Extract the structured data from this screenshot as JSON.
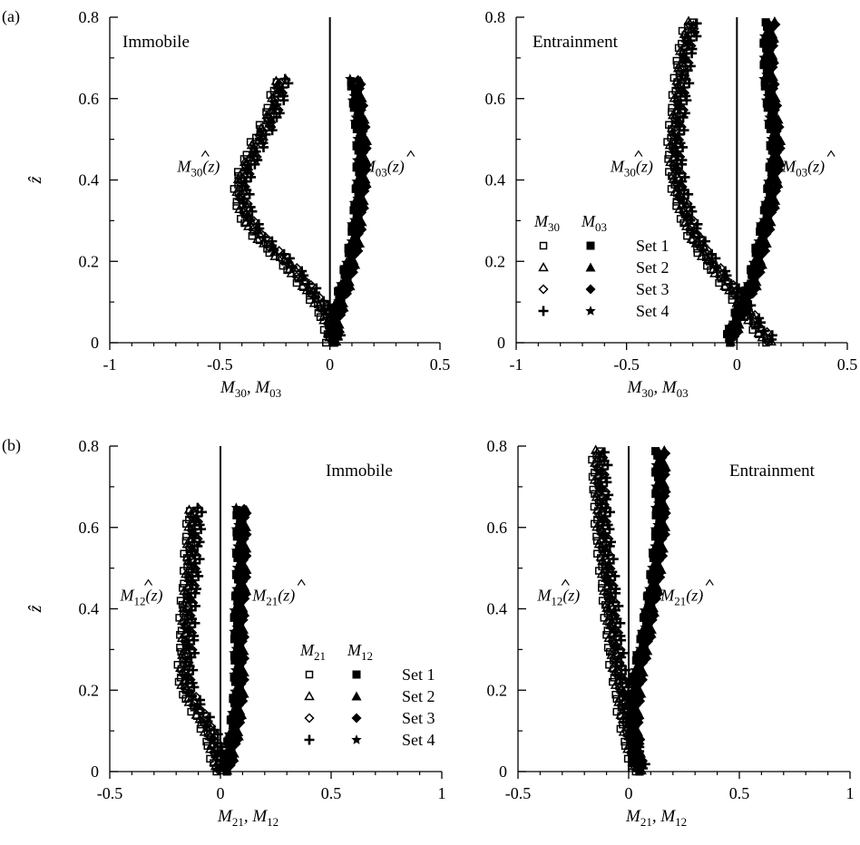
{
  "figure_labels": {
    "a": "(a)",
    "b": "(b)"
  },
  "legend": {
    "col_a_row1": "M",
    "sets": [
      "Set 1",
      "Set 2",
      "Set 3",
      "Set 4"
    ]
  },
  "chart_data": [
    {
      "id": "a-left",
      "type": "scatter",
      "title": "Immobile",
      "xlim": [
        -1,
        0.5
      ],
      "ylim": [
        0,
        0.8
      ],
      "xticks": [
        -1,
        -0.5,
        0,
        0.5
      ],
      "xtick_labels": [
        "-1",
        "-0.5",
        "0",
        "0.5"
      ],
      "yticks": [
        0,
        0.2,
        0.4,
        0.6,
        0.8
      ],
      "ytick_labels": [
        "0",
        "0.2",
        "0.4",
        "0.6",
        "0.8"
      ],
      "xlabel": {
        "parts": [
          "M",
          "30",
          ", M",
          "03"
        ]
      },
      "ylabel": "ẑ",
      "left_label": {
        "M": "M",
        "sub": "30",
        "arg": "(z)",
        "at": [
          -0.5,
          0.42
        ]
      },
      "right_label": {
        "M": "M",
        "sub": "03",
        "arg": "(z)",
        "at": [
          0.12,
          0.42
        ]
      },
      "left_series": "M30",
      "right_series": "M03",
      "profile_left": [
        [
          0.0,
          0.0
        ],
        [
          0.02,
          0.0
        ],
        [
          0.0,
          0.05
        ],
        [
          -0.05,
          0.1
        ],
        [
          -0.12,
          0.15
        ],
        [
          -0.2,
          0.2
        ],
        [
          -0.3,
          0.25
        ],
        [
          -0.37,
          0.3
        ],
        [
          -0.4,
          0.35
        ],
        [
          -0.4,
          0.4
        ],
        [
          -0.36,
          0.45
        ],
        [
          -0.32,
          0.5
        ],
        [
          -0.27,
          0.55
        ],
        [
          -0.24,
          0.6
        ],
        [
          -0.22,
          0.65
        ]
      ],
      "profile_right": [
        [
          0.02,
          0.0
        ],
        [
          0.03,
          0.05
        ],
        [
          0.05,
          0.1
        ],
        [
          0.08,
          0.15
        ],
        [
          0.1,
          0.2
        ],
        [
          0.12,
          0.25
        ],
        [
          0.13,
          0.3
        ],
        [
          0.14,
          0.35
        ],
        [
          0.15,
          0.4
        ],
        [
          0.15,
          0.45
        ],
        [
          0.15,
          0.5
        ],
        [
          0.14,
          0.55
        ],
        [
          0.13,
          0.6
        ],
        [
          0.12,
          0.65
        ]
      ],
      "hide_legend": true
    },
    {
      "id": "a-right",
      "type": "scatter",
      "title": "Entrainment",
      "xlim": [
        -1,
        0.5
      ],
      "ylim": [
        0,
        0.8
      ],
      "xticks": [
        -1,
        -0.5,
        0,
        0.5
      ],
      "xtick_labels": [
        "-1",
        "-0.5",
        "0",
        "0.5"
      ],
      "yticks": [
        0,
        0.2,
        0.4,
        0.6,
        0.8
      ],
      "ytick_labels": [
        "0",
        "0.2",
        "0.4",
        "0.6",
        "0.8"
      ],
      "xlabel": {
        "parts": [
          "M",
          "30",
          ", M",
          "03"
        ]
      },
      "ylabel": "",
      "left_label": {
        "M": "M",
        "sub": "30",
        "arg": "(z)",
        "at": [
          -0.38,
          0.42
        ]
      },
      "right_label": {
        "M": "M",
        "sub": "03",
        "arg": "(z)",
        "at": [
          0.18,
          0.42
        ]
      },
      "left_series": "M30",
      "right_series": "M03",
      "profile_left": [
        [
          0.15,
          0.0
        ],
        [
          0.08,
          0.05
        ],
        [
          0.02,
          0.1
        ],
        [
          -0.05,
          0.15
        ],
        [
          -0.12,
          0.2
        ],
        [
          -0.18,
          0.25
        ],
        [
          -0.22,
          0.3
        ],
        [
          -0.25,
          0.35
        ],
        [
          -0.27,
          0.4
        ],
        [
          -0.28,
          0.45
        ],
        [
          -0.28,
          0.5
        ],
        [
          -0.27,
          0.55
        ],
        [
          -0.26,
          0.6
        ],
        [
          -0.25,
          0.65
        ],
        [
          -0.24,
          0.7
        ],
        [
          -0.22,
          0.75
        ],
        [
          -0.2,
          0.79
        ]
      ],
      "profile_right": [
        [
          -0.03,
          0.0
        ],
        [
          0.0,
          0.05
        ],
        [
          0.04,
          0.1
        ],
        [
          0.08,
          0.15
        ],
        [
          0.1,
          0.2
        ],
        [
          0.12,
          0.25
        ],
        [
          0.14,
          0.3
        ],
        [
          0.16,
          0.35
        ],
        [
          0.17,
          0.4
        ],
        [
          0.18,
          0.45
        ],
        [
          0.18,
          0.5
        ],
        [
          0.17,
          0.55
        ],
        [
          0.16,
          0.6
        ],
        [
          0.15,
          0.65
        ],
        [
          0.15,
          0.7
        ],
        [
          0.15,
          0.75
        ],
        [
          0.16,
          0.79
        ]
      ],
      "legend": {
        "head_left": {
          "M": "M",
          "sub": "30"
        },
        "head_right": {
          "M": "M",
          "sub": "03"
        },
        "entries": [
          "Set 1",
          "Set 2",
          "Set 3",
          "Set 4"
        ]
      }
    },
    {
      "id": "b-left",
      "type": "scatter",
      "title": "Immobile",
      "xlim": [
        -0.5,
        1
      ],
      "ylim": [
        0,
        0.8
      ],
      "xticks": [
        -0.5,
        0,
        0.5,
        1
      ],
      "xtick_labels": [
        "-0.5",
        "0",
        "0.5",
        "1"
      ],
      "yticks": [
        0,
        0.2,
        0.4,
        0.6,
        0.8
      ],
      "ytick_labels": [
        "0",
        "0.2",
        "0.4",
        "0.6",
        "0.8"
      ],
      "xlabel": {
        "parts": [
          "M",
          "21",
          ", M",
          "12"
        ]
      },
      "ylabel": "ẑ",
      "left_label": {
        "M": "M",
        "sub": "12",
        "arg": "(z)",
        "at": [
          -0.26,
          0.42
        ]
      },
      "right_label": {
        "M": "M",
        "sub": "21",
        "arg": "(z)",
        "at": [
          0.12,
          0.42
        ]
      },
      "left_series": "M12",
      "right_series": "M21",
      "profile_left": [
        [
          0.0,
          0.0
        ],
        [
          -0.02,
          0.05
        ],
        [
          -0.05,
          0.1
        ],
        [
          -0.1,
          0.15
        ],
        [
          -0.15,
          0.2
        ],
        [
          -0.16,
          0.25
        ],
        [
          -0.15,
          0.3
        ],
        [
          -0.15,
          0.35
        ],
        [
          -0.15,
          0.4
        ],
        [
          -0.14,
          0.45
        ],
        [
          -0.13,
          0.5
        ],
        [
          -0.13,
          0.55
        ],
        [
          -0.12,
          0.6
        ],
        [
          -0.12,
          0.65
        ]
      ],
      "profile_right": [
        [
          0.03,
          0.0
        ],
        [
          0.05,
          0.05
        ],
        [
          0.07,
          0.1
        ],
        [
          0.08,
          0.15
        ],
        [
          0.09,
          0.2
        ],
        [
          0.09,
          0.25
        ],
        [
          0.09,
          0.3
        ],
        [
          0.09,
          0.35
        ],
        [
          0.09,
          0.4
        ],
        [
          0.1,
          0.45
        ],
        [
          0.1,
          0.5
        ],
        [
          0.1,
          0.55
        ],
        [
          0.1,
          0.6
        ],
        [
          0.1,
          0.65
        ]
      ],
      "legend": {
        "head_left": {
          "M": "M",
          "sub": "21"
        },
        "head_right": {
          "M": "M",
          "sub": "12"
        },
        "entries": [
          "Set 1",
          "Set 2",
          "Set 3",
          "Set 4"
        ]
      }
    },
    {
      "id": "b-right",
      "type": "scatter",
      "title": "Entrainment",
      "xlim": [
        -0.5,
        1
      ],
      "ylim": [
        0,
        0.8
      ],
      "xticks": [
        -0.5,
        0,
        0.5,
        1
      ],
      "xtick_labels": [
        "-0.5",
        "0",
        "0.5",
        "1"
      ],
      "yticks": [
        0,
        0.2,
        0.4,
        0.6,
        0.8
      ],
      "ytick_labels": [
        "0",
        "0.2",
        "0.4",
        "0.6",
        "0.8"
      ],
      "xlabel": {
        "parts": [
          "M",
          "21",
          ", M",
          "12"
        ]
      },
      "ylabel": "",
      "left_label": {
        "M": "M",
        "sub": "12",
        "arg": "(z)",
        "at": [
          -0.22,
          0.42
        ]
      },
      "right_label": {
        "M": "M",
        "sub": "21",
        "arg": "(z)",
        "at": [
          0.12,
          0.42
        ]
      },
      "left_series": "M12",
      "right_series": "M21",
      "profile_left": [
        [
          0.05,
          0.0
        ],
        [
          0.02,
          0.05
        ],
        [
          0.0,
          0.1
        ],
        [
          -0.02,
          0.15
        ],
        [
          -0.03,
          0.2
        ],
        [
          -0.05,
          0.25
        ],
        [
          -0.06,
          0.3
        ],
        [
          -0.07,
          0.35
        ],
        [
          -0.08,
          0.4
        ],
        [
          -0.09,
          0.45
        ],
        [
          -0.1,
          0.5
        ],
        [
          -0.11,
          0.55
        ],
        [
          -0.12,
          0.6
        ],
        [
          -0.12,
          0.65
        ],
        [
          -0.13,
          0.7
        ],
        [
          -0.13,
          0.75
        ],
        [
          -0.13,
          0.79
        ]
      ],
      "profile_right": [
        [
          0.05,
          0.0
        ],
        [
          0.04,
          0.05
        ],
        [
          0.03,
          0.1
        ],
        [
          0.03,
          0.15
        ],
        [
          0.04,
          0.2
        ],
        [
          0.05,
          0.25
        ],
        [
          0.07,
          0.3
        ],
        [
          0.09,
          0.35
        ],
        [
          0.1,
          0.4
        ],
        [
          0.12,
          0.45
        ],
        [
          0.13,
          0.5
        ],
        [
          0.14,
          0.55
        ],
        [
          0.15,
          0.6
        ],
        [
          0.15,
          0.65
        ],
        [
          0.15,
          0.7
        ],
        [
          0.15,
          0.75
        ],
        [
          0.15,
          0.79
        ]
      ],
      "hide_legend": true
    }
  ]
}
